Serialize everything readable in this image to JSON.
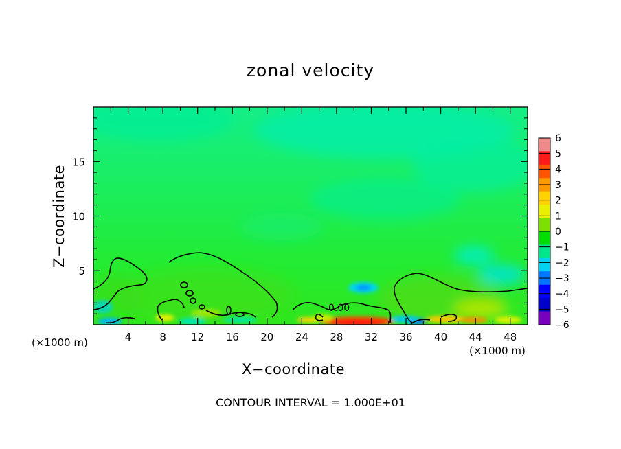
{
  "chart_data": {
    "type": "heatmap",
    "title": "zonal velocity",
    "xlabel": "X−coordinate",
    "ylabel": "Z−coordinate",
    "x_unit": "(×1000 m)",
    "y_unit": "(×1000 m)",
    "xlim": [
      0,
      50
    ],
    "ylim": [
      0,
      20
    ],
    "x_ticks": [
      4,
      8,
      12,
      16,
      20,
      24,
      28,
      32,
      36,
      40,
      44,
      48
    ],
    "y_ticks": [
      5,
      10,
      15
    ],
    "colorbar": {
      "levels": [
        "6",
        "5",
        "4",
        "3",
        "2",
        "1",
        "0",
        "−1",
        "−2",
        "−3",
        "−4",
        "−5",
        "−6"
      ],
      "colors": [
        "#f08a8a",
        "#ff1a1a",
        "#ff5500",
        "#ff9900",
        "#ffd200",
        "#e8f000",
        "#7ee000",
        "#00e000",
        "#00e68c",
        "#00d2f0",
        "#0078ff",
        "#0000ff",
        "#0000c8",
        "#7a00c0"
      ]
    },
    "contour_label": "0.00",
    "annotation": "CONTOUR INTERVAL =  1.000E+01",
    "colors": {
      "background": "#ffffff",
      "field_upper": "#16ef78",
      "field_mid": "#22ec30",
      "field_lower": "#3ee018"
    }
  }
}
